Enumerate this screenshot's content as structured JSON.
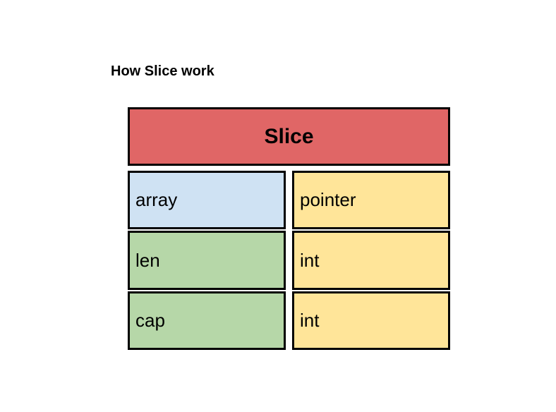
{
  "caption": "How Slice work",
  "header": {
    "label": "Slice",
    "color": "#e06666"
  },
  "rows": [
    {
      "field": "array",
      "type": "pointer",
      "field_color": "#cfe2f3",
      "type_color": "#ffe599"
    },
    {
      "field": "len",
      "type": "int",
      "field_color": "#b6d7a8",
      "type_color": "#ffe599"
    },
    {
      "field": "cap",
      "type": "int",
      "field_color": "#b6d7a8",
      "type_color": "#ffe599"
    }
  ]
}
